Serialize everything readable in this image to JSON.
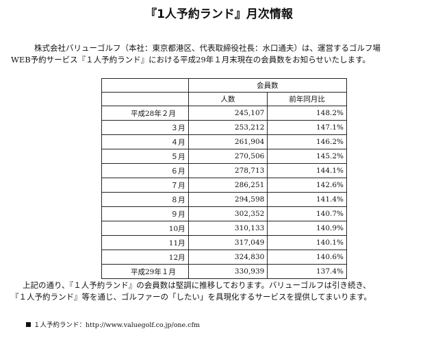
{
  "document": {
    "title": "『1人予約ランド』月次情報",
    "intro_line1": "株式会社バリューゴルフ（本社：東京都港区、代表取締役社長：水口通夫）は、運営するゴルフ場",
    "intro_line2": "WEB予約サービス『１人予約ランド』における平成29年１月末現在の会員数をお知らせいたします。",
    "outro_line1": "上記の通り、『１人予約ランド』の会員数は堅調に推移しております。バリューゴルフは引き続き、",
    "outro_line2": "『１人予約ランド』等を通じ、ゴルファーの「したい」を具現化するサービスを提供してまいります。",
    "url_label": "１人予約ランド：http://www.valuegolf.co.jp/one.cfm"
  },
  "table": {
    "group_header": "会員数",
    "col_count": "人数",
    "col_ratio": "前年同月比",
    "rows": [
      {
        "period": "平成28年２月",
        "count": "245,107",
        "ratio": "148.2%"
      },
      {
        "period": "３月",
        "count": "253,212",
        "ratio": "147.1%"
      },
      {
        "period": "４月",
        "count": "261,904",
        "ratio": "146.2%"
      },
      {
        "period": "５月",
        "count": "270,506",
        "ratio": "145.2%"
      },
      {
        "period": "６月",
        "count": "278,713",
        "ratio": "144.1%"
      },
      {
        "period": "７月",
        "count": "286,251",
        "ratio": "142.6%"
      },
      {
        "period": "８月",
        "count": "294,598",
        "ratio": "141.4%"
      },
      {
        "period": "９月",
        "count": "302,352",
        "ratio": "140.7%"
      },
      {
        "period": "10月",
        "count": "310,133",
        "ratio": "140.9%"
      },
      {
        "period": "11月",
        "count": "317,049",
        "ratio": "140.1%"
      },
      {
        "period": "12月",
        "count": "324,830",
        "ratio": "140.6%"
      },
      {
        "period": "平成29年１月",
        "count": "330,939",
        "ratio": "137.4%"
      }
    ]
  }
}
